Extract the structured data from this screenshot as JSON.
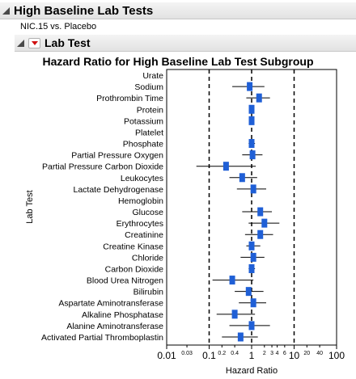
{
  "report": {
    "title": "High Baseline Lab Tests",
    "subtitle": "NIC.15 vs. Placebo",
    "section_title": "Lab Test"
  },
  "chart_data": {
    "type": "scatter",
    "title": "Hazard Ratio for High Baseline Lab Test Subgroup",
    "xlabel": "Hazard Ratio",
    "ylabel": "Lab Test",
    "x_scale": "log",
    "xlim": [
      0.01,
      100
    ],
    "reference_lines": [
      0.1,
      1,
      10
    ],
    "x_major_ticks": [
      "0.01",
      "0.1",
      "1",
      "10",
      "100"
    ],
    "x_minor_ticks": [
      {
        "value": 0.03,
        "label": "0.03"
      },
      {
        "value": 0.2,
        "label": "0.2"
      },
      {
        "value": 0.4,
        "label": "0.4"
      },
      {
        "value": 2,
        "label": "2"
      },
      {
        "value": 3,
        "label": "3"
      },
      {
        "value": 4,
        "label": "4"
      },
      {
        "value": 6,
        "label": "6"
      },
      {
        "value": 20,
        "label": "20"
      },
      {
        "value": 40,
        "label": "40"
      }
    ],
    "categories": [
      "Urate",
      "Sodium",
      "Prothrombin Time",
      "Protein",
      "Potassium",
      "Platelet",
      "Phosphate",
      "Partial Pressure Oxygen",
      "Partial Pressure Carbon Dioxide",
      "Leukocytes",
      "Lactate Dehydrogenase",
      "Hemoglobin",
      "Glucose",
      "Erythrocytes",
      "Creatinine",
      "Creatine Kinase",
      "Chloride",
      "Carbon Dioxide",
      "Blood Urea Nitrogen",
      "Bilirubin",
      "Aspartate Aminotransferase",
      "Alkaline Phosphatase",
      "Alanine Aminotransferase",
      "Activated Partial Thromboplastin"
    ],
    "estimates": [
      null,
      0.9,
      1.5,
      1.0,
      1.0,
      null,
      1.0,
      1.05,
      0.25,
      0.6,
      1.1,
      null,
      1.6,
      2.0,
      1.6,
      1.0,
      1.1,
      1.0,
      0.35,
      0.85,
      1.1,
      0.4,
      1.0,
      0.55
    ],
    "ci_lower": [
      null,
      0.35,
      0.75,
      0.9,
      0.9,
      null,
      0.85,
      0.6,
      0.05,
      0.3,
      0.45,
      null,
      0.6,
      0.85,
      0.7,
      0.75,
      0.55,
      0.85,
      0.12,
      0.4,
      0.5,
      0.15,
      0.3,
      0.2
    ],
    "ci_upper": [
      null,
      2.0,
      2.7,
      1.15,
      1.15,
      null,
      1.2,
      1.8,
      1.25,
      1.35,
      2.2,
      null,
      3.0,
      4.5,
      3.2,
      1.6,
      2.0,
      1.2,
      1.1,
      1.9,
      2.2,
      1.2,
      2.7,
      1.4
    ],
    "colors": {
      "marker": "#1f5fd6",
      "line": "#000000",
      "refline": "#000000"
    }
  }
}
